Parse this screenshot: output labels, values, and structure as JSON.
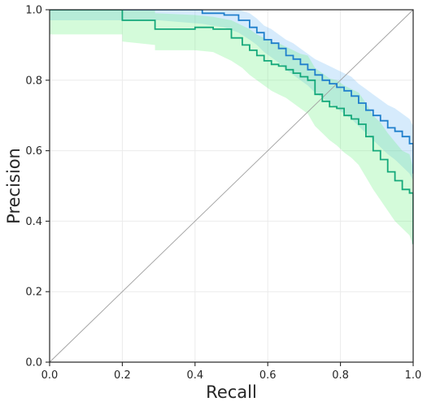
{
  "chart_data": {
    "type": "line",
    "title": "",
    "xlabel": "Recall",
    "ylabel": "Precision",
    "xlim": [
      0,
      1
    ],
    "ylim": [
      0,
      1
    ],
    "grid": true,
    "x_ticks": [
      0.0,
      0.2,
      0.4,
      0.6,
      0.8,
      1.0
    ],
    "y_ticks": [
      0.0,
      0.2,
      0.4,
      0.6,
      0.8,
      1.0
    ],
    "x_tick_labels": [
      "0.0",
      "0.2",
      "0.4",
      "0.6",
      "0.8",
      "1.0"
    ],
    "y_tick_labels": [
      "0.0",
      "0.2",
      "0.4",
      "0.6",
      "0.8",
      "1.0"
    ],
    "reference_line": {
      "x": [
        0,
        1
      ],
      "y": [
        0,
        1
      ],
      "color": "#a0a0a0"
    },
    "series": [
      {
        "color": "#1f7fcc",
        "band_color": "#6cb8f5",
        "x": [
          0.0,
          0.2,
          0.2,
          0.3,
          0.42,
          0.48,
          0.52,
          0.55,
          0.57,
          0.59,
          0.61,
          0.63,
          0.65,
          0.67,
          0.69,
          0.71,
          0.73,
          0.75,
          0.77,
          0.79,
          0.81,
          0.83,
          0.85,
          0.87,
          0.89,
          0.91,
          0.93,
          0.95,
          0.97,
          0.99,
          1.0,
          1.0
        ],
        "y": [
          1.0,
          1.0,
          1.0,
          1.0,
          0.99,
          0.985,
          0.97,
          0.95,
          0.935,
          0.915,
          0.905,
          0.89,
          0.87,
          0.86,
          0.845,
          0.83,
          0.815,
          0.8,
          0.79,
          0.78,
          0.77,
          0.755,
          0.735,
          0.715,
          0.7,
          0.685,
          0.665,
          0.655,
          0.64,
          0.62,
          0.6,
          0.535
        ],
        "band_low": [
          0.97,
          0.97,
          0.97,
          0.97,
          0.96,
          0.95,
          0.935,
          0.915,
          0.9,
          0.88,
          0.865,
          0.85,
          0.83,
          0.815,
          0.8,
          0.785,
          0.765,
          0.75,
          0.735,
          0.72,
          0.705,
          0.69,
          0.67,
          0.65,
          0.63,
          0.61,
          0.59,
          0.575,
          0.555,
          0.535,
          0.515,
          0.47
        ],
        "band_high": [
          1.0,
          1.0,
          1.0,
          1.0,
          1.0,
          1.0,
          1.0,
          0.99,
          0.975,
          0.955,
          0.945,
          0.93,
          0.915,
          0.905,
          0.89,
          0.875,
          0.86,
          0.85,
          0.84,
          0.83,
          0.82,
          0.81,
          0.79,
          0.775,
          0.76,
          0.745,
          0.73,
          0.72,
          0.705,
          0.69,
          0.67,
          0.6
        ]
      },
      {
        "color": "#14a87a",
        "band_color": "#66f07a",
        "x": [
          0.0,
          0.2,
          0.2,
          0.29,
          0.29,
          0.4,
          0.45,
          0.5,
          0.53,
          0.55,
          0.57,
          0.59,
          0.61,
          0.63,
          0.65,
          0.67,
          0.69,
          0.71,
          0.73,
          0.75,
          0.77,
          0.79,
          0.81,
          0.83,
          0.85,
          0.87,
          0.89,
          0.91,
          0.93,
          0.95,
          0.97,
          0.99,
          1.0,
          1.0
        ],
        "y": [
          1.0,
          1.0,
          0.97,
          0.97,
          0.945,
          0.95,
          0.945,
          0.92,
          0.9,
          0.885,
          0.87,
          0.855,
          0.845,
          0.84,
          0.83,
          0.82,
          0.81,
          0.8,
          0.76,
          0.74,
          0.725,
          0.72,
          0.7,
          0.69,
          0.675,
          0.64,
          0.6,
          0.575,
          0.54,
          0.515,
          0.49,
          0.48,
          0.44,
          0.335
        ],
        "band_low": [
          0.93,
          0.93,
          0.91,
          0.9,
          0.885,
          0.885,
          0.88,
          0.855,
          0.835,
          0.815,
          0.8,
          0.785,
          0.77,
          0.76,
          0.75,
          0.735,
          0.72,
          0.705,
          0.67,
          0.65,
          0.63,
          0.615,
          0.595,
          0.58,
          0.56,
          0.525,
          0.49,
          0.46,
          0.43,
          0.4,
          0.38,
          0.36,
          0.33,
          0.3
        ],
        "band_high": [
          1.0,
          1.0,
          1.0,
          1.0,
          0.99,
          0.985,
          0.98,
          0.97,
          0.955,
          0.945,
          0.93,
          0.92,
          0.91,
          0.905,
          0.895,
          0.885,
          0.875,
          0.87,
          0.835,
          0.82,
          0.805,
          0.8,
          0.785,
          0.775,
          0.765,
          0.735,
          0.7,
          0.68,
          0.65,
          0.625,
          0.6,
          0.59,
          0.55,
          0.42
        ]
      }
    ]
  },
  "colors": {
    "background": "#ffffff",
    "axis": "#262626",
    "grid": "#ebebeb"
  }
}
